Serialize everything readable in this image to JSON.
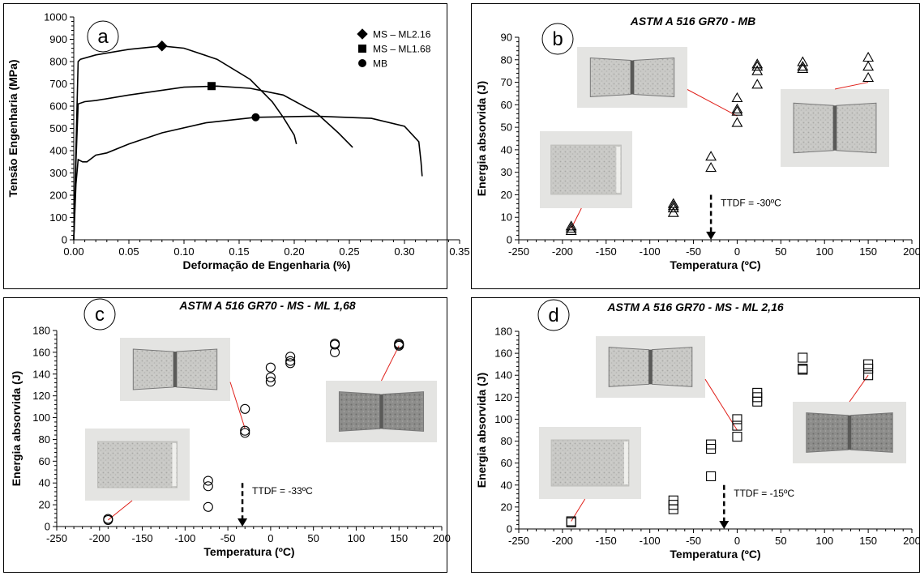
{
  "colors": {
    "line": "#000000",
    "pointer": "#e0201a",
    "photo_bg": "#e4e4e2",
    "photo_fracture": "#8a8a88"
  },
  "chart_data": [
    {
      "id": "a",
      "type": "line",
      "letter": "a",
      "title": "",
      "xlabel": "Deformação de Engenharia (%)",
      "ylabel": "Tensão Engenharia (MPa)",
      "xlim": [
        0,
        0.35
      ],
      "ylim": [
        0,
        1000
      ],
      "xticks": [
        "0.00",
        "0.05",
        "0.10",
        "0.15",
        "0.20",
        "0.25",
        "0.30",
        "0.35"
      ],
      "yticks": [
        "0",
        "100",
        "200",
        "300",
        "400",
        "500",
        "600",
        "700",
        "800",
        "900",
        "1000"
      ],
      "legend_position": "top-right",
      "series": [
        {
          "name": "MS – ML2.16",
          "marker": "diamond",
          "marker_at": [
            0.08,
            870
          ],
          "x": [
            0,
            0.002,
            0.004,
            0.006,
            0.02,
            0.05,
            0.08,
            0.1,
            0.13,
            0.16,
            0.18,
            0.19,
            0.2,
            0.202
          ],
          "y": [
            0,
            400,
            800,
            810,
            830,
            855,
            870,
            860,
            810,
            720,
            620,
            550,
            470,
            430
          ]
        },
        {
          "name": "MS – ML1.68",
          "marker": "square",
          "marker_at": [
            0.125,
            690
          ],
          "x": [
            0,
            0.002,
            0.004,
            0.01,
            0.02,
            0.05,
            0.1,
            0.13,
            0.16,
            0.19,
            0.22,
            0.24,
            0.253
          ],
          "y": [
            0,
            350,
            610,
            620,
            625,
            650,
            685,
            690,
            680,
            650,
            570,
            480,
            415
          ]
        },
        {
          "name": "MB",
          "marker": "circle",
          "marker_at": [
            0.165,
            550
          ],
          "x": [
            0,
            0.002,
            0.004,
            0.008,
            0.012,
            0.02,
            0.03,
            0.05,
            0.08,
            0.12,
            0.165,
            0.22,
            0.27,
            0.3,
            0.313,
            0.315,
            0.316
          ],
          "y": [
            0,
            250,
            360,
            350,
            350,
            380,
            390,
            430,
            480,
            525,
            550,
            555,
            545,
            510,
            440,
            350,
            285
          ]
        }
      ]
    },
    {
      "id": "b",
      "type": "scatter",
      "letter": "b",
      "title": "ASTM A 516 GR70 - MB",
      "xlabel": "Temperatura (ºC)",
      "ylabel": "Energia absorvida (J)",
      "xlim": [
        -250,
        200
      ],
      "ylim": [
        0,
        90
      ],
      "xticks": [
        "-250",
        "-200",
        "-150",
        "-100",
        "-50",
        "0",
        "50",
        "100",
        "150",
        "200"
      ],
      "yticks": [
        "0",
        "10",
        "20",
        "30",
        "40",
        "50",
        "60",
        "70",
        "80",
        "90"
      ],
      "marker": "triangle",
      "points": [
        [
          -190,
          5
        ],
        [
          -190,
          4
        ],
        [
          -190,
          6
        ],
        [
          -73,
          16
        ],
        [
          -73,
          14
        ],
        [
          -73,
          12
        ],
        [
          -73,
          15
        ],
        [
          -30,
          37
        ],
        [
          -30,
          32
        ],
        [
          0,
          63
        ],
        [
          0,
          58
        ],
        [
          0,
          57
        ],
        [
          0,
          52
        ],
        [
          23,
          77
        ],
        [
          23,
          75
        ],
        [
          23,
          69
        ],
        [
          23,
          78
        ],
        [
          75,
          79
        ],
        [
          75,
          77
        ],
        [
          75,
          76
        ],
        [
          150,
          81
        ],
        [
          150,
          77
        ],
        [
          150,
          72
        ]
      ],
      "annotation": {
        "text": "TTDF = -30ºC",
        "x": -30,
        "arrow_from": 20,
        "arrow_to": 0
      },
      "photos": [
        {
          "type": "ductile-split",
          "target": [
            0,
            55
          ]
        },
        {
          "type": "brittle",
          "target": [
            -190,
            5
          ]
        },
        {
          "type": "ductile-split",
          "target": [
            150,
            70
          ]
        }
      ]
    },
    {
      "id": "c",
      "type": "scatter",
      "letter": "c",
      "title": "ASTM A 516 GR70 - MS - ML 1,68",
      "xlabel": "Temperatura (ºC)",
      "ylabel": "Energia absorvida (J)",
      "xlim": [
        -250,
        200
      ],
      "ylim": [
        0,
        180
      ],
      "xticks": [
        "-250",
        "-200",
        "-150",
        "-100",
        "-50",
        "0",
        "50",
        "100",
        "150",
        "200"
      ],
      "yticks": [
        "0",
        "20",
        "40",
        "60",
        "80",
        "100",
        "120",
        "140",
        "160",
        "180"
      ],
      "marker": "circle",
      "points": [
        [
          -190,
          6
        ],
        [
          -190,
          7
        ],
        [
          -73,
          42
        ],
        [
          -73,
          37
        ],
        [
          -73,
          18
        ],
        [
          -30,
          108
        ],
        [
          -30,
          88
        ],
        [
          -30,
          86
        ],
        [
          0,
          146
        ],
        [
          0,
          137
        ],
        [
          0,
          133
        ],
        [
          23,
          156
        ],
        [
          23,
          152
        ],
        [
          23,
          150
        ],
        [
          75,
          168
        ],
        [
          75,
          167
        ],
        [
          75,
          160
        ],
        [
          150,
          168
        ],
        [
          150,
          167
        ],
        [
          150,
          166
        ]
      ],
      "annotation": {
        "text": "TTDF = -33ºC",
        "x": -33,
        "arrow_from": 40,
        "arrow_to": 0
      },
      "photos": [
        {
          "type": "ductile-split",
          "target": [
            -30,
            90
          ]
        },
        {
          "type": "brittle",
          "target": [
            -190,
            6
          ]
        },
        {
          "type": "ductile-dark",
          "target": [
            150,
            166
          ]
        }
      ]
    },
    {
      "id": "d",
      "type": "scatter",
      "letter": "d",
      "title": "ASTM A 516 GR70 - MS - ML 2,16",
      "xlabel": "Temperatura (ºC)",
      "ylabel": "Energia absorvida (J)",
      "xlim": [
        -250,
        200
      ],
      "ylim": [
        0,
        180
      ],
      "xticks": [
        "-250",
        "-200",
        "-150",
        "-100",
        "-50",
        "0",
        "50",
        "100",
        "150",
        "200"
      ],
      "yticks": [
        "0",
        "20",
        "40",
        "60",
        "80",
        "100",
        "120",
        "140",
        "160",
        "180"
      ],
      "marker": "square",
      "points": [
        [
          -190,
          7
        ],
        [
          -190,
          6
        ],
        [
          -73,
          26
        ],
        [
          -73,
          22
        ],
        [
          -73,
          18
        ],
        [
          -30,
          77
        ],
        [
          -30,
          73
        ],
        [
          -30,
          48
        ],
        [
          0,
          100
        ],
        [
          0,
          94
        ],
        [
          0,
          84
        ],
        [
          23,
          124
        ],
        [
          23,
          120
        ],
        [
          23,
          116
        ],
        [
          75,
          156
        ],
        [
          75,
          146
        ],
        [
          75,
          145
        ],
        [
          150,
          150
        ],
        [
          150,
          146
        ],
        [
          150,
          140
        ]
      ],
      "annotation": {
        "text": "TTDF = -15ºC",
        "x": -15,
        "arrow_from": 40,
        "arrow_to": 0
      },
      "photos": [
        {
          "type": "ductile-split",
          "target": [
            0,
            90
          ]
        },
        {
          "type": "brittle",
          "target": [
            -190,
            7
          ]
        },
        {
          "type": "ductile-dark",
          "target": [
            150,
            140
          ]
        }
      ]
    }
  ]
}
